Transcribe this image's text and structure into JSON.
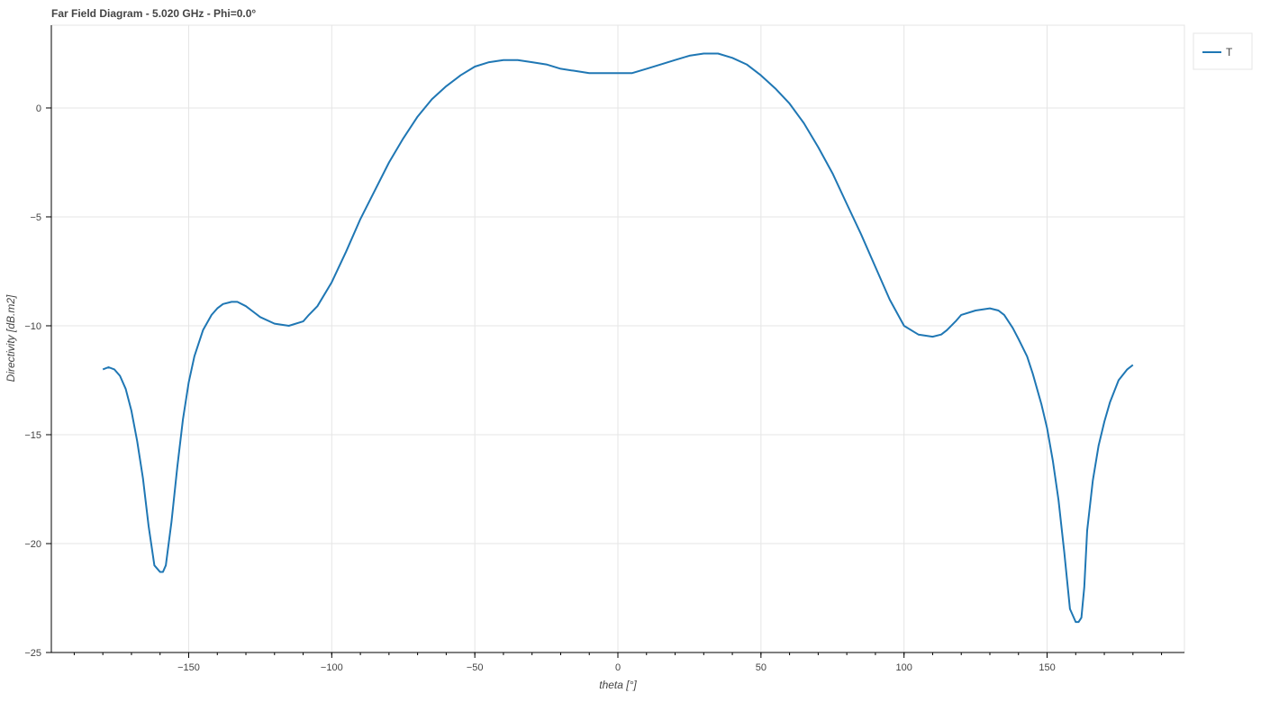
{
  "chart_data": {
    "type": "line",
    "title": "Far Field Diagram - 5.020 GHz - Phi=0.0°",
    "xlabel": "theta [°]",
    "ylabel": "Directivity [dB.m2]",
    "xlim": [
      -198,
      198
    ],
    "ylim": [
      -25,
      3.8
    ],
    "xticks": [
      -150,
      -100,
      -50,
      0,
      50,
      100,
      150
    ],
    "yticks": [
      -25,
      -20,
      -15,
      -10,
      -5,
      0
    ],
    "xtick_labels": [
      "−150",
      "−100",
      "−50",
      "0",
      "50",
      "100",
      "150"
    ],
    "ytick_labels": [
      "−25",
      "−20",
      "−15",
      "−10",
      "−5",
      "0"
    ],
    "x_minor_step": 10,
    "grid": true,
    "legend": {
      "position": "top-right",
      "entries": [
        "T"
      ]
    },
    "series": [
      {
        "name": "T",
        "color": "#1f77b4",
        "x": [
          -180,
          -178,
          -176,
          -174,
          -172,
          -170,
          -168,
          -166,
          -164,
          -162,
          -160,
          -159,
          -158,
          -156,
          -154,
          -152,
          -150,
          -148,
          -145,
          -142,
          -140,
          -138,
          -135,
          -133,
          -130,
          -127,
          -125,
          -120,
          -115,
          -110,
          -108,
          -105,
          -100,
          -95,
          -90,
          -85,
          -80,
          -75,
          -70,
          -65,
          -60,
          -55,
          -50,
          -45,
          -40,
          -35,
          -30,
          -25,
          -20,
          -15,
          -10,
          -5,
          0,
          5,
          10,
          15,
          20,
          25,
          30,
          33,
          35,
          40,
          45,
          50,
          55,
          60,
          65,
          70,
          75,
          80,
          85,
          90,
          95,
          100,
          105,
          110,
          113,
          115,
          118,
          120,
          125,
          130,
          133,
          135,
          138,
          140,
          143,
          145,
          148,
          150,
          152,
          154,
          156,
          158,
          160,
          161,
          162,
          163,
          164,
          166,
          168,
          170,
          172,
          175,
          178,
          180
        ],
        "y": [
          -12.0,
          -11.9,
          -12.0,
          -12.3,
          -12.9,
          -13.9,
          -15.3,
          -17.0,
          -19.2,
          -21.0,
          -21.3,
          -21.3,
          -21.0,
          -19.0,
          -16.5,
          -14.3,
          -12.6,
          -11.4,
          -10.2,
          -9.5,
          -9.2,
          -9.0,
          -8.9,
          -8.9,
          -9.1,
          -9.4,
          -9.6,
          -9.9,
          -10.0,
          -9.8,
          -9.5,
          -9.1,
          -8.0,
          -6.6,
          -5.1,
          -3.8,
          -2.5,
          -1.4,
          -0.4,
          0.4,
          1.0,
          1.5,
          1.9,
          2.1,
          2.2,
          2.2,
          2.1,
          2.0,
          1.8,
          1.7,
          1.6,
          1.6,
          1.6,
          1.6,
          1.8,
          2.0,
          2.2,
          2.4,
          2.5,
          2.5,
          2.5,
          2.3,
          2.0,
          1.5,
          0.9,
          0.2,
          -0.7,
          -1.8,
          -3.0,
          -4.4,
          -5.8,
          -7.3,
          -8.8,
          -10.0,
          -10.4,
          -10.5,
          -10.4,
          -10.2,
          -9.8,
          -9.5,
          -9.3,
          -9.2,
          -9.3,
          -9.5,
          -10.1,
          -10.6,
          -11.4,
          -12.2,
          -13.6,
          -14.7,
          -16.2,
          -18.0,
          -20.4,
          -23.0,
          -23.6,
          -23.6,
          -23.4,
          -22.0,
          -19.4,
          -17.1,
          -15.5,
          -14.4,
          -13.5,
          -12.5,
          -12.0,
          -11.8
        ]
      }
    ]
  }
}
